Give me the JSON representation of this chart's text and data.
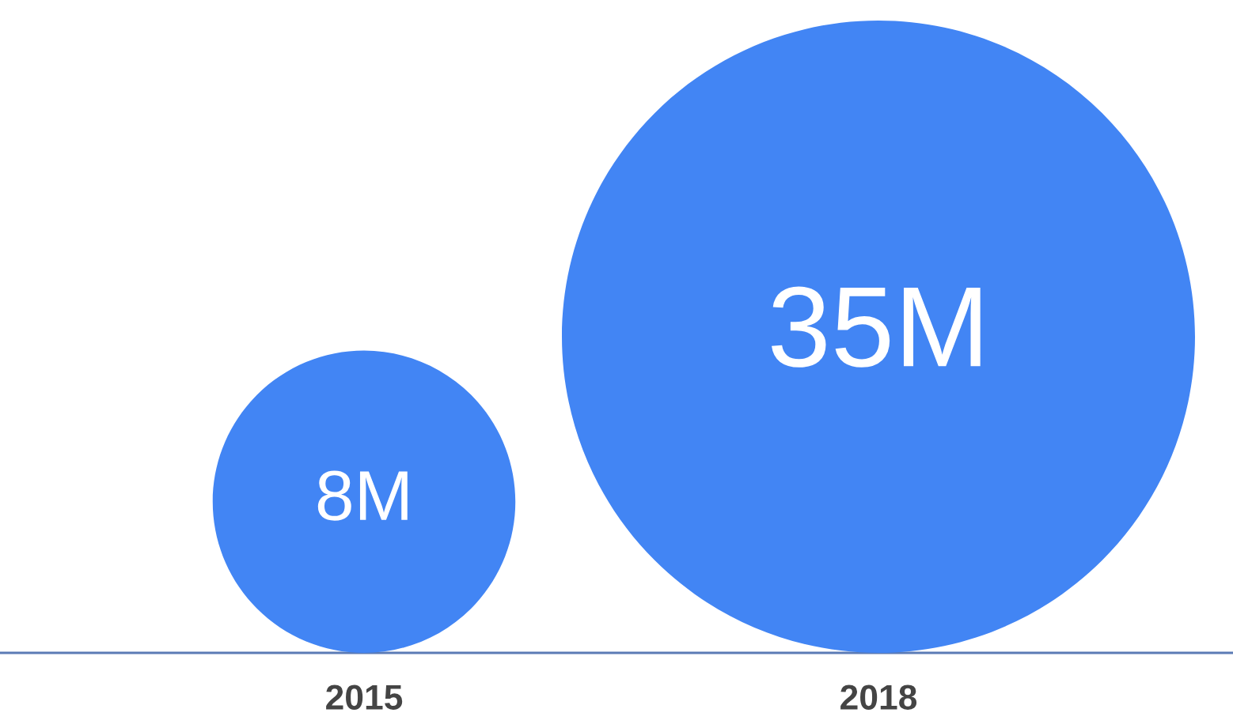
{
  "chart_data": {
    "type": "other",
    "categories": [
      "2015",
      "2018"
    ],
    "values": [
      8,
      35
    ],
    "value_labels": [
      "8M",
      "35M"
    ],
    "color": "#4285f4"
  }
}
